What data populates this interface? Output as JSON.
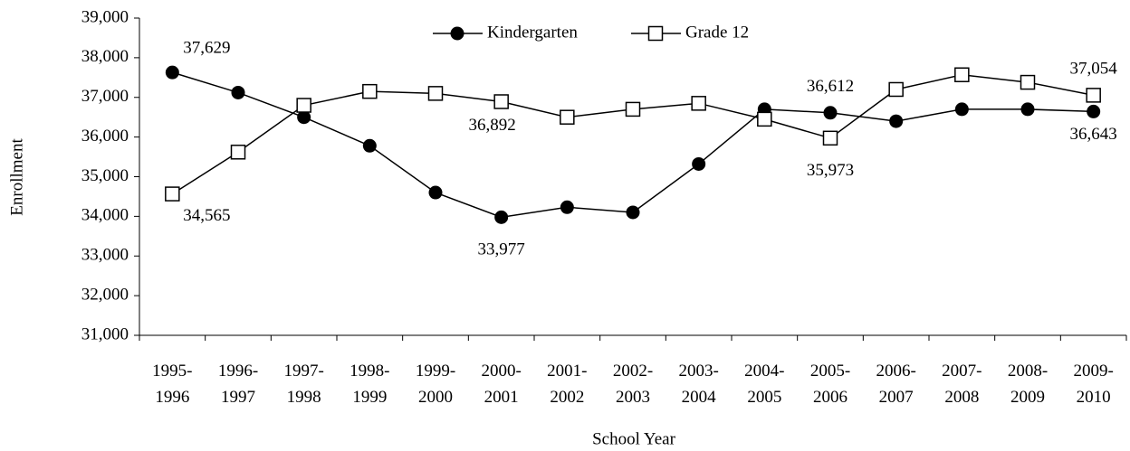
{
  "chart_data": {
    "type": "line",
    "y_label": "Enrollment",
    "x_label": "School Year",
    "categories": [
      "1995-1996",
      "1996-1997",
      "1997-1998",
      "1998-1999",
      "1999-2000",
      "2000-2001",
      "2001-2002",
      "2002-2003",
      "2003-2004",
      "2004-2005",
      "2005-2006",
      "2006-2007",
      "2007-2008",
      "2008-2009",
      "2009-2010"
    ],
    "series": [
      {
        "name": "Kindergarten",
        "color": "#000000",
        "marker": "filled-circle",
        "values": [
          37629,
          37120,
          36500,
          35780,
          34600,
          33977,
          34230,
          34100,
          35320,
          36700,
          36612,
          36400,
          36700,
          36700,
          36643
        ],
        "value_labels": [
          "37,629",
          null,
          null,
          null,
          null,
          "33,977",
          null,
          null,
          null,
          null,
          "36,612",
          null,
          null,
          null,
          "36,643"
        ]
      },
      {
        "name": "Grade 12",
        "color": "#000000",
        "marker": "open-square",
        "values": [
          34565,
          35620,
          36800,
          37150,
          37100,
          36892,
          36500,
          36700,
          36850,
          36450,
          35973,
          37200,
          37570,
          37380,
          37054
        ],
        "value_labels": [
          "34,565",
          null,
          null,
          null,
          null,
          "36,892",
          null,
          null,
          null,
          null,
          "35,973",
          null,
          null,
          null,
          "37,054"
        ]
      }
    ],
    "ylim": [
      31000,
      39000
    ],
    "yticks": [
      {
        "value": 31000,
        "label": "31,000"
      },
      {
        "value": 32000,
        "label": "32,000"
      },
      {
        "value": 33000,
        "label": "33,000"
      },
      {
        "value": 34000,
        "label": "34,000"
      },
      {
        "value": 35000,
        "label": "35,000"
      },
      {
        "value": 36000,
        "label": "36,000"
      },
      {
        "value": 37000,
        "label": "37,000"
      },
      {
        "value": 38000,
        "label": "38,000"
      },
      {
        "value": 39000,
        "label": "39,000"
      }
    ],
    "legend": "top",
    "grid": false
  }
}
